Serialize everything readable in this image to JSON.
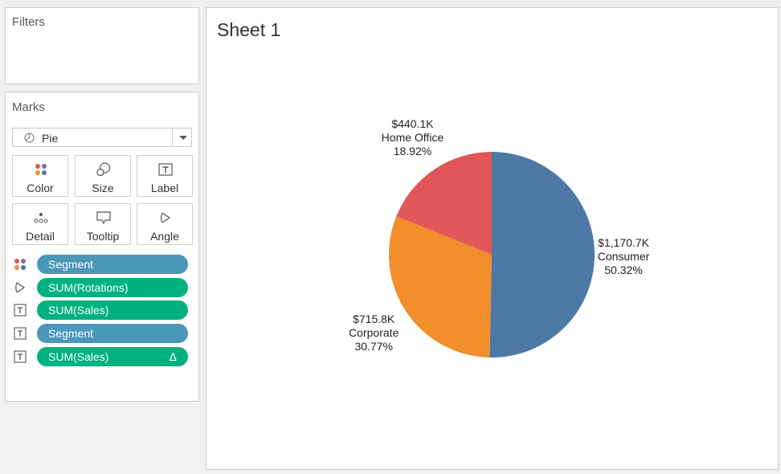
{
  "filters": {
    "title": "Filters"
  },
  "marks": {
    "title": "Marks",
    "mark_type": "Pie",
    "buttons": [
      {
        "label": "Color",
        "icon": "color-dots-icon"
      },
      {
        "label": "Size",
        "icon": "size-icon"
      },
      {
        "label": "Label",
        "icon": "label-text-icon"
      },
      {
        "label": "Detail",
        "icon": "detail-dots-icon"
      },
      {
        "label": "Tooltip",
        "icon": "tooltip-icon"
      },
      {
        "label": "Angle",
        "icon": "angle-icon"
      }
    ],
    "pills": [
      {
        "field": "Segment",
        "kind": "dimension",
        "icon": "color-dots-icon"
      },
      {
        "field": "SUM(Rotations)",
        "kind": "measure",
        "icon": "angle-icon"
      },
      {
        "field": "SUM(Sales)",
        "kind": "measure",
        "icon": "label-text-icon"
      },
      {
        "field": "Segment",
        "kind": "dimension",
        "icon": "label-text-icon"
      },
      {
        "field": "SUM(Sales)",
        "kind": "measure",
        "icon": "label-text-icon",
        "badge": "Δ"
      }
    ]
  },
  "sheet": {
    "title": "Sheet 1"
  },
  "chart_data": {
    "type": "pie",
    "title": "Sheet 1",
    "slices": [
      {
        "name": "Consumer",
        "value_label": "$1,170.7K",
        "value": 1170.7,
        "percent_label": "50.32%",
        "percent": 50.32,
        "color": "#4e79a7"
      },
      {
        "name": "Corporate",
        "value_label": "$715.8K",
        "value": 715.8,
        "percent_label": "30.77%",
        "percent": 30.77,
        "color": "#f28e2b"
      },
      {
        "name": "Home Office",
        "value_label": "$440.1K",
        "value": 440.1,
        "percent_label": "18.92%",
        "percent": 18.92,
        "color": "#e15759"
      }
    ]
  },
  "colors": {
    "dimension_pill": "#4a97ba",
    "measure_pill": "#00b180"
  }
}
